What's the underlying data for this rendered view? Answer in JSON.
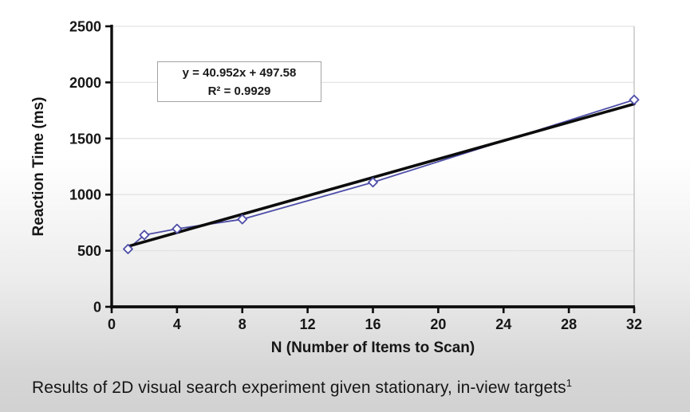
{
  "slide": {
    "caption": "Results of 2D visual search experiment given stationary, in-view targets",
    "caption_footnote": "1"
  },
  "chart_data": {
    "type": "line",
    "title": "",
    "xlabel": "N (Number of Items to Scan)",
    "ylabel": "Reaction Time (ms)",
    "x": [
      1,
      2,
      4,
      8,
      16,
      32
    ],
    "series": [
      {
        "marker": "open-diamond",
        "color": "#4e4ea8",
        "values": [
          515,
          640,
          695,
          780,
          1110,
          1845
        ]
      }
    ],
    "xlim": [
      0,
      32
    ],
    "ylim": [
      0,
      2500
    ],
    "xticks": [
      0,
      4,
      8,
      12,
      16,
      20,
      24,
      28,
      32
    ],
    "yticks": [
      0,
      500,
      1000,
      1500,
      2000,
      2500
    ],
    "grid": "horizontal",
    "legend_position": "none",
    "gridline_color": "#e3e3e3",
    "axis_color": "#0d0d0d",
    "trendline": {
      "slope": 40.952,
      "intercept": 497.58,
      "r_squared": 0.9929,
      "color": "#0c0c0c",
      "label_line1": "y = 40.952x + 497.58",
      "label_line2": "R² = 0.9929"
    }
  }
}
